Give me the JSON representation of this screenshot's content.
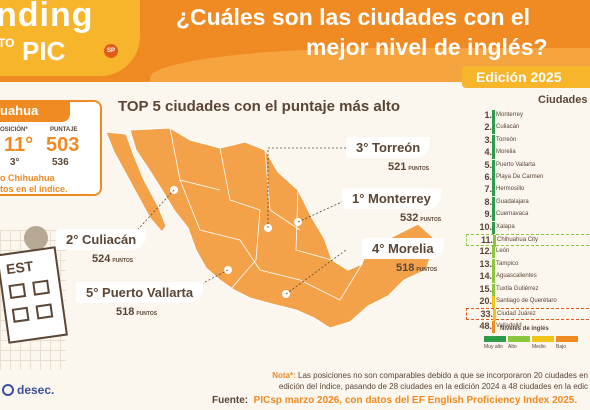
{
  "header": {
    "logo_line1": "nding",
    "logo_line2": "TO",
    "logo_line3": "PIC",
    "logo_sp": "SP",
    "title_line1": "¿Cuáles son las ciudades con el",
    "title_line2": "mejor nivel de inglés?",
    "edition": "Edición 2025"
  },
  "subtitle": "TOP  5 ciudades con el puntaje más alto",
  "chihuahua": {
    "name": "uahua",
    "position_label": "OSICIÓN*",
    "score_label": "PUNTAJE",
    "position_2025": "11°",
    "score_2025": "503",
    "position_2024": "3°",
    "score_2024": "536",
    "note_line1": "o Chihuahua",
    "note_line2": "tos en el índice."
  },
  "sheet": {
    "word": "EST"
  },
  "top_cities": [
    {
      "label": "3° Torreón",
      "points": "521",
      "unit": "PUNTOS"
    },
    {
      "label": "1° Monterrey",
      "points": "532",
      "unit": "PUNTOS"
    },
    {
      "label": "2° Culiacán",
      "points": "524",
      "unit": "PUNTOS"
    },
    {
      "label": "4° Morelia",
      "points": "518",
      "unit": "PUNTOS"
    },
    {
      "label": "5° Puerto Vallarta",
      "points": "518",
      "unit": "PUNTOS"
    }
  ],
  "list": {
    "title": "Ciudades",
    "rows": [
      {
        "rank": "1.",
        "city": "Monterrey",
        "level_color": "#2f9a4a"
      },
      {
        "rank": "2.",
        "city": "Culiacán",
        "level_color": "#2f9a4a"
      },
      {
        "rank": "3.",
        "city": "Torreón",
        "level_color": "#2f9a4a"
      },
      {
        "rank": "4.",
        "city": "Morelia",
        "level_color": "#2f9a4a"
      },
      {
        "rank": "5.",
        "city": "Puerto Vallarta",
        "level_color": "#2f9a4a"
      },
      {
        "rank": "6.",
        "city": "Playa De Carmen",
        "level_color": "#2f9a4a"
      },
      {
        "rank": "7.",
        "city": "Hermosillo",
        "level_color": "#2f9a4a"
      },
      {
        "rank": "8.",
        "city": "Guadalajara",
        "level_color": "#2f9a4a"
      },
      {
        "rank": "9.",
        "city": "Cuernavaca",
        "level_color": "#2f9a4a"
      },
      {
        "rank": "10.",
        "city": "Xalapa",
        "level_color": "#2f9a4a"
      },
      {
        "rank": "11.",
        "city": "Chihuahua City",
        "level_color": "#8cc63f"
      },
      {
        "rank": "12.",
        "city": "León",
        "level_color": "#8cc63f"
      },
      {
        "rank": "13.",
        "city": "Tampico",
        "level_color": "#8cc63f"
      },
      {
        "rank": "14.",
        "city": "Aguascalientes",
        "level_color": "#8cc63f"
      },
      {
        "rank": "15.",
        "city": "Tuxtla Gutiérrez",
        "level_color": "#8cc63f"
      },
      {
        "rank": "20.",
        "city": "Santiago de Querétaro",
        "level_color": "#f0c419"
      },
      {
        "rank": "33.",
        "city": "Ciudad Juárez",
        "level_color": "#f0c419"
      },
      {
        "rank": "48.",
        "city": "Valladolid",
        "level_color": "#f08a22"
      }
    ]
  },
  "legend": {
    "title": "Niveles de inglés",
    "items": [
      {
        "label": "Muy alto",
        "color": "#2f9a4a"
      },
      {
        "label": "Alto",
        "color": "#8cc63f"
      },
      {
        "label": "Medio",
        "color": "#f0c419"
      },
      {
        "label": "Bajo",
        "color": "#f08a22"
      }
    ]
  },
  "footnote": {
    "label": "Nota*:",
    "line1": "Las posiciones no son comparables debido a que se incorporaron 20 ciudades en",
    "line2": "edición del índice, pasando de 28 ciudades en la edición 2024 a 48 ciudades en la edic"
  },
  "source": {
    "label": "Fuente:",
    "text": "PICsp marzo 2026, con datos del EF English Proficiency Index 2025."
  },
  "brand": {
    "name": "desec."
  },
  "colors": {
    "orange": "#f08a22",
    "yellow": "#f7b52c",
    "brown": "#5b4636",
    "highlight_chihuahua": "#8cc63f",
    "highlight_juarez": "#e4571b"
  }
}
